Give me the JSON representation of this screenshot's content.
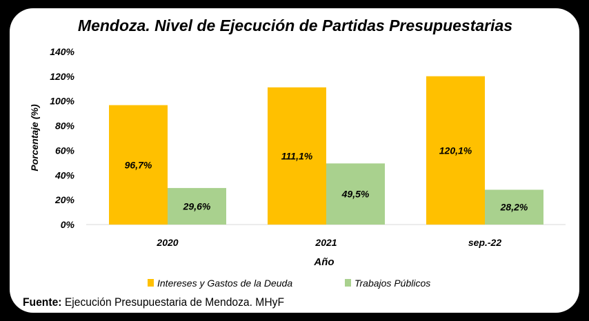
{
  "chart_data": {
    "type": "bar",
    "title": "Mendoza. Nivel de Ejecución de Partidas Presupuestarias",
    "xlabel": "Año",
    "ylabel": "Porcentaje (%)",
    "categories": [
      "2020",
      "2021",
      "sep.-22"
    ],
    "series": [
      {
        "name": "Intereses y Gastos de la Deuda",
        "color": "#FFC000",
        "values": [
          96.7,
          111.1,
          120.1
        ],
        "labels": [
          "96,7%",
          "111,1%",
          "120,1%"
        ]
      },
      {
        "name": "Trabajos Públicos",
        "color": "#A9D18E",
        "values": [
          29.6,
          49.5,
          28.2
        ],
        "labels": [
          "29,6%",
          "49,5%",
          "28,2%"
        ]
      }
    ],
    "ylim": [
      0,
      140
    ],
    "yticks": [
      0,
      20,
      40,
      60,
      80,
      100,
      120,
      140
    ],
    "ytick_labels": [
      "0%",
      "20%",
      "40%",
      "60%",
      "80%",
      "100%",
      "120%",
      "140%"
    ],
    "grid": false,
    "legend": "bottom"
  },
  "source": {
    "label": "Fuente:",
    "text": "Ejecución Presupuestaria de Mendoza. MHyF"
  }
}
